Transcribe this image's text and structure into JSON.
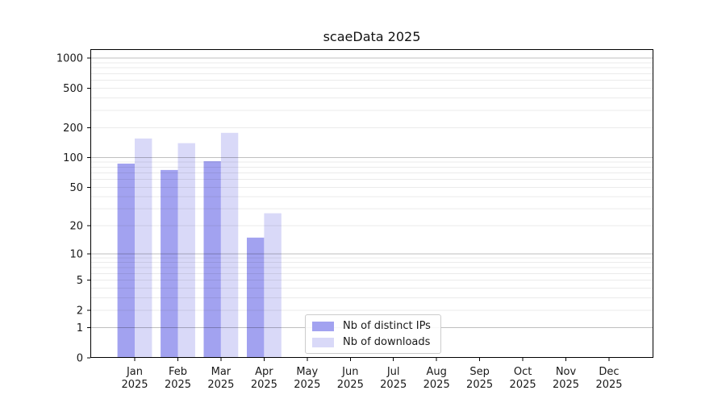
{
  "figure": {
    "background": "#ffffff"
  },
  "chart_data": {
    "type": "bar",
    "title": "scaeData 2025",
    "categories": [
      "Jan",
      "Feb",
      "Mar",
      "Apr",
      "May",
      "Jun",
      "Jul",
      "Aug",
      "Sep",
      "Oct",
      "Nov",
      "Dec"
    ],
    "category_year": "2025",
    "series": [
      {
        "name": "Nb of distinct IPs",
        "color": "#a2a2f0",
        "values": [
          87,
          75,
          92,
          15,
          0,
          0,
          0,
          0,
          0,
          0,
          0,
          0
        ]
      },
      {
        "name": "Nb of downloads",
        "color": "#d9d9f8",
        "values": [
          156,
          140,
          178,
          27,
          0,
          0,
          0,
          0,
          0,
          0,
          0,
          0
        ]
      }
    ],
    "yscale": "log1p",
    "ylim": [
      0,
      1230
    ],
    "yticks": [
      0,
      1,
      2,
      5,
      10,
      20,
      50,
      100,
      200,
      500,
      1000
    ],
    "major_gridlines": [
      1,
      10,
      100,
      1000
    ],
    "grid": {
      "orientation": "horizontal",
      "major_color": "rgba(0,0,0,0.25)",
      "minor_color": "rgba(0,0,0,0.08)",
      "drawn_over_bars": true
    },
    "axis": {
      "spine_color": "#000000",
      "tick_color": "#000000",
      "label_color": "#191919"
    },
    "legend": {
      "position": "inside-bottom-center",
      "border_color": "#cccccc",
      "background": "#ffffff"
    }
  }
}
